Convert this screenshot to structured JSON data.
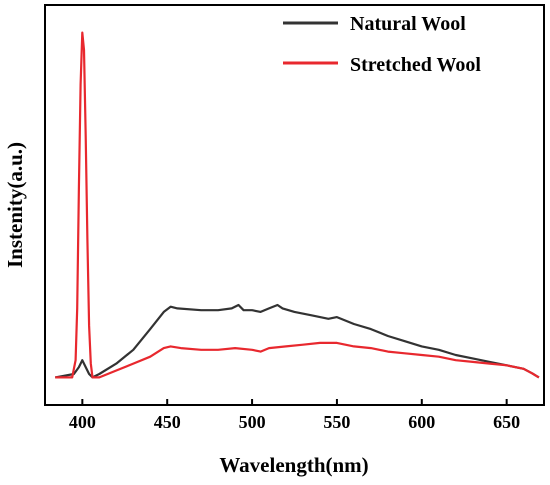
{
  "chart_data": {
    "type": "line",
    "title": "",
    "xlabel": "Wavelength(nm)",
    "ylabel": "Instenity(a.u.)",
    "xlim": [
      378,
      672
    ],
    "ylim": [
      -0.08,
      1.08
    ],
    "x_ticks": [
      400,
      450,
      500,
      550,
      600,
      650
    ],
    "x_tick_labels": [
      "400",
      "450",
      "500",
      "550",
      "600",
      "650"
    ],
    "y_ticks_shown": false,
    "grid": false,
    "legend_position": "top-right",
    "series": [
      {
        "name": "Natural Wool",
        "color": "#333333",
        "x": [
          384,
          395,
          398,
          400,
          402,
          404,
          406,
          410,
          420,
          430,
          440,
          448,
          452,
          456,
          470,
          480,
          488,
          492,
          495,
          500,
          505,
          510,
          515,
          518,
          525,
          535,
          545,
          550,
          560,
          570,
          580,
          590,
          600,
          610,
          620,
          630,
          640,
          650,
          660,
          665,
          669
        ],
        "y": [
          0.0,
          0.01,
          0.03,
          0.05,
          0.03,
          0.01,
          0.0,
          0.01,
          0.04,
          0.08,
          0.14,
          0.19,
          0.205,
          0.2,
          0.195,
          0.195,
          0.2,
          0.21,
          0.195,
          0.195,
          0.19,
          0.2,
          0.21,
          0.2,
          0.19,
          0.18,
          0.17,
          0.175,
          0.155,
          0.14,
          0.12,
          0.105,
          0.09,
          0.08,
          0.065,
          0.055,
          0.045,
          0.035,
          0.025,
          0.012,
          0.0
        ]
      },
      {
        "name": "Stretched Wool",
        "color": "#e8282e",
        "x": [
          384,
          394,
          396,
          397,
          398,
          399,
          400,
          401,
          402,
          403,
          404,
          405,
          406,
          410,
          420,
          430,
          440,
          448,
          452,
          458,
          470,
          480,
          490,
          500,
          505,
          510,
          520,
          530,
          540,
          550,
          560,
          570,
          580,
          590,
          600,
          610,
          620,
          630,
          640,
          650,
          660,
          665,
          669
        ],
        "y": [
          0.0,
          0.0,
          0.05,
          0.2,
          0.55,
          0.85,
          1.0,
          0.95,
          0.7,
          0.4,
          0.15,
          0.04,
          0.0,
          0.0,
          0.02,
          0.04,
          0.06,
          0.085,
          0.09,
          0.085,
          0.08,
          0.08,
          0.085,
          0.08,
          0.075,
          0.085,
          0.09,
          0.095,
          0.1,
          0.1,
          0.09,
          0.085,
          0.075,
          0.07,
          0.065,
          0.06,
          0.05,
          0.045,
          0.04,
          0.035,
          0.025,
          0.012,
          0.0
        ]
      }
    ]
  }
}
